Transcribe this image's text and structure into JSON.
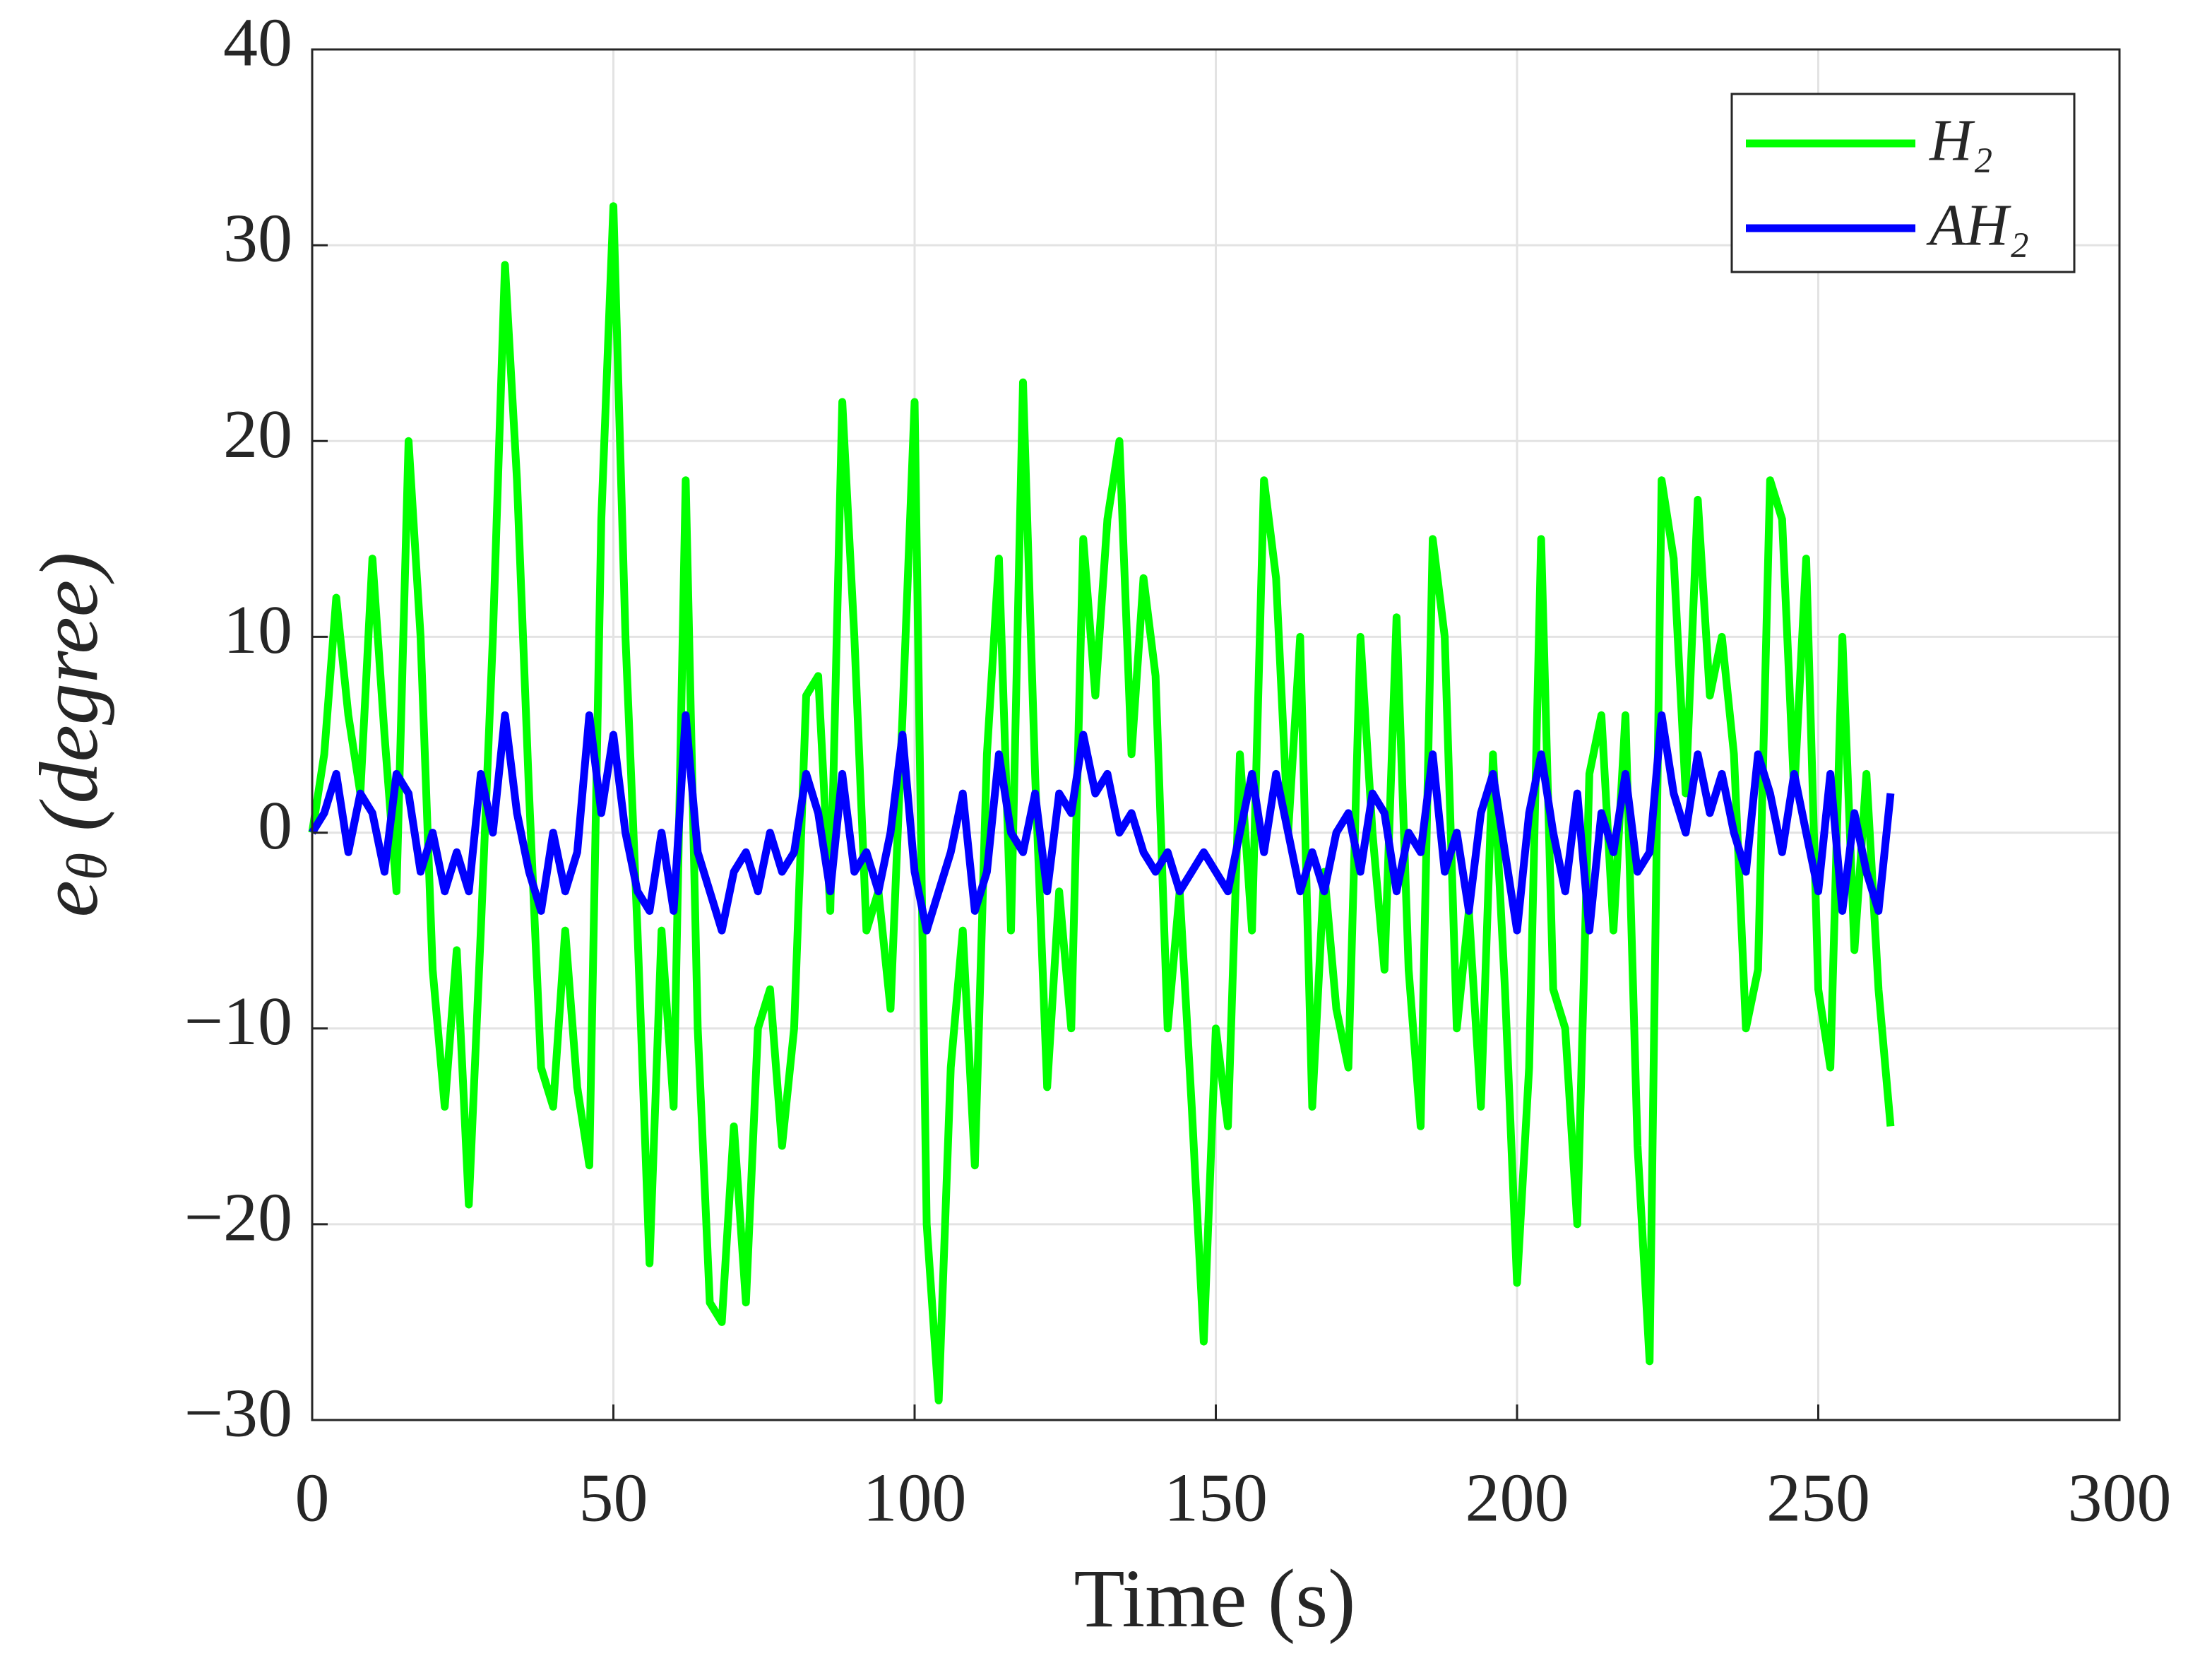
{
  "chart_data": {
    "type": "line",
    "x_label": "Time (s)",
    "y_label": [
      "e",
      "θ",
      "(degree)"
    ],
    "xlim": [
      0,
      300
    ],
    "xticks": [
      0,
      50,
      100,
      150,
      200,
      250,
      300
    ],
    "ylim": [
      -30,
      40
    ],
    "yticks": [
      {
        "value": -30,
        "label": "−30"
      },
      {
        "value": -20,
        "label": "−20"
      },
      {
        "value": -10,
        "label": "−10"
      },
      0,
      10,
      20,
      30,
      40
    ],
    "grid": true,
    "legend": "northeast",
    "x": [
      0,
      2,
      4,
      6,
      8,
      10,
      12,
      14,
      16,
      18,
      20,
      22,
      24,
      26,
      28,
      30,
      32,
      34,
      36,
      38,
      40,
      42,
      44,
      46,
      48,
      50,
      52,
      54,
      56,
      58,
      60,
      62,
      64,
      66,
      68,
      70,
      72,
      74,
      76,
      78,
      80,
      82,
      84,
      86,
      88,
      90,
      92,
      94,
      96,
      98,
      100,
      102,
      104,
      106,
      108,
      110,
      112,
      114,
      116,
      118,
      120,
      122,
      124,
      126,
      128,
      130,
      132,
      134,
      136,
      138,
      140,
      142,
      144,
      146,
      148,
      150,
      152,
      154,
      156,
      158,
      160,
      162,
      164,
      166,
      168,
      170,
      172,
      174,
      176,
      178,
      180,
      182,
      184,
      186,
      188,
      190,
      192,
      194,
      196,
      198,
      200,
      202,
      204,
      206,
      208,
      210,
      212,
      214,
      216,
      218,
      220,
      222,
      224,
      226,
      228,
      230,
      232,
      234,
      236,
      238,
      240,
      242,
      244,
      246,
      248,
      250,
      252,
      254,
      256,
      258,
      260,
      262
    ],
    "series": [
      {
        "name": "H₂",
        "color": "#00ff00",
        "values": [
          0,
          4,
          12,
          6,
          2,
          14,
          5,
          -3,
          20,
          10,
          -7,
          -14,
          -6,
          -19,
          -5,
          10,
          29,
          18,
          2,
          -12,
          -14,
          -5,
          -13,
          -17,
          16,
          32,
          10,
          -5,
          -22,
          -5,
          -14,
          18,
          -10,
          -24,
          -25,
          -15,
          -24,
          -10,
          -8,
          -16,
          -10,
          7,
          8,
          -4,
          22,
          10,
          -5,
          -3,
          -9,
          6,
          22,
          -20,
          -29,
          -12,
          -5,
          -17,
          4,
          14,
          -5,
          23,
          3,
          -13,
          -3,
          -10,
          15,
          7,
          16,
          20,
          4,
          13,
          8,
          -10,
          -3,
          -14,
          -26,
          -10,
          -15,
          4,
          -5,
          18,
          13,
          0,
          10,
          -14,
          -2,
          -9,
          -12,
          10,
          0,
          -7,
          11,
          -7,
          -15,
          15,
          10,
          -10,
          -4,
          -14,
          4,
          -8,
          -23,
          -12,
          15,
          -8,
          -10,
          -20,
          3,
          6,
          -5,
          6,
          -16,
          -27,
          18,
          14,
          2,
          17,
          7,
          10,
          4,
          -10,
          -7,
          18,
          16,
          2,
          14,
          -8,
          -12,
          10,
          -6,
          3,
          -8,
          -15
        ]
      },
      {
        "name": "AH₂",
        "color": "#0000ff",
        "values": [
          0,
          1,
          3,
          -1,
          2,
          1,
          -2,
          3,
          2,
          -2,
          0,
          -3,
          -1,
          -3,
          3,
          0,
          6,
          1,
          -2,
          -4,
          0,
          -3,
          -1,
          6,
          1,
          5,
          0,
          -3,
          -4,
          0,
          -4,
          6,
          -1,
          -3,
          -5,
          -2,
          -1,
          -3,
          0,
          -2,
          -1,
          3,
          1,
          -3,
          3,
          -2,
          -1,
          -3,
          0,
          5,
          -2,
          -5,
          -3,
          -1,
          2,
          -4,
          -2,
          4,
          0,
          -1,
          2,
          -3,
          2,
          1,
          5,
          2,
          3,
          0,
          1,
          -1,
          -2,
          -1,
          -3,
          -2,
          -1,
          -2,
          -3,
          0,
          3,
          -1,
          3,
          0,
          -3,
          -1,
          -3,
          0,
          1,
          -2,
          2,
          1,
          -3,
          0,
          -1,
          4,
          -2,
          0,
          -4,
          1,
          3,
          -1,
          -5,
          1,
          4,
          0,
          -3,
          2,
          -5,
          1,
          -1,
          3,
          -2,
          -1,
          6,
          2,
          0,
          4,
          1,
          3,
          0,
          -2,
          4,
          2,
          -1,
          3,
          0,
          -3,
          3,
          -4,
          1,
          -2,
          -4,
          2
        ]
      }
    ]
  }
}
